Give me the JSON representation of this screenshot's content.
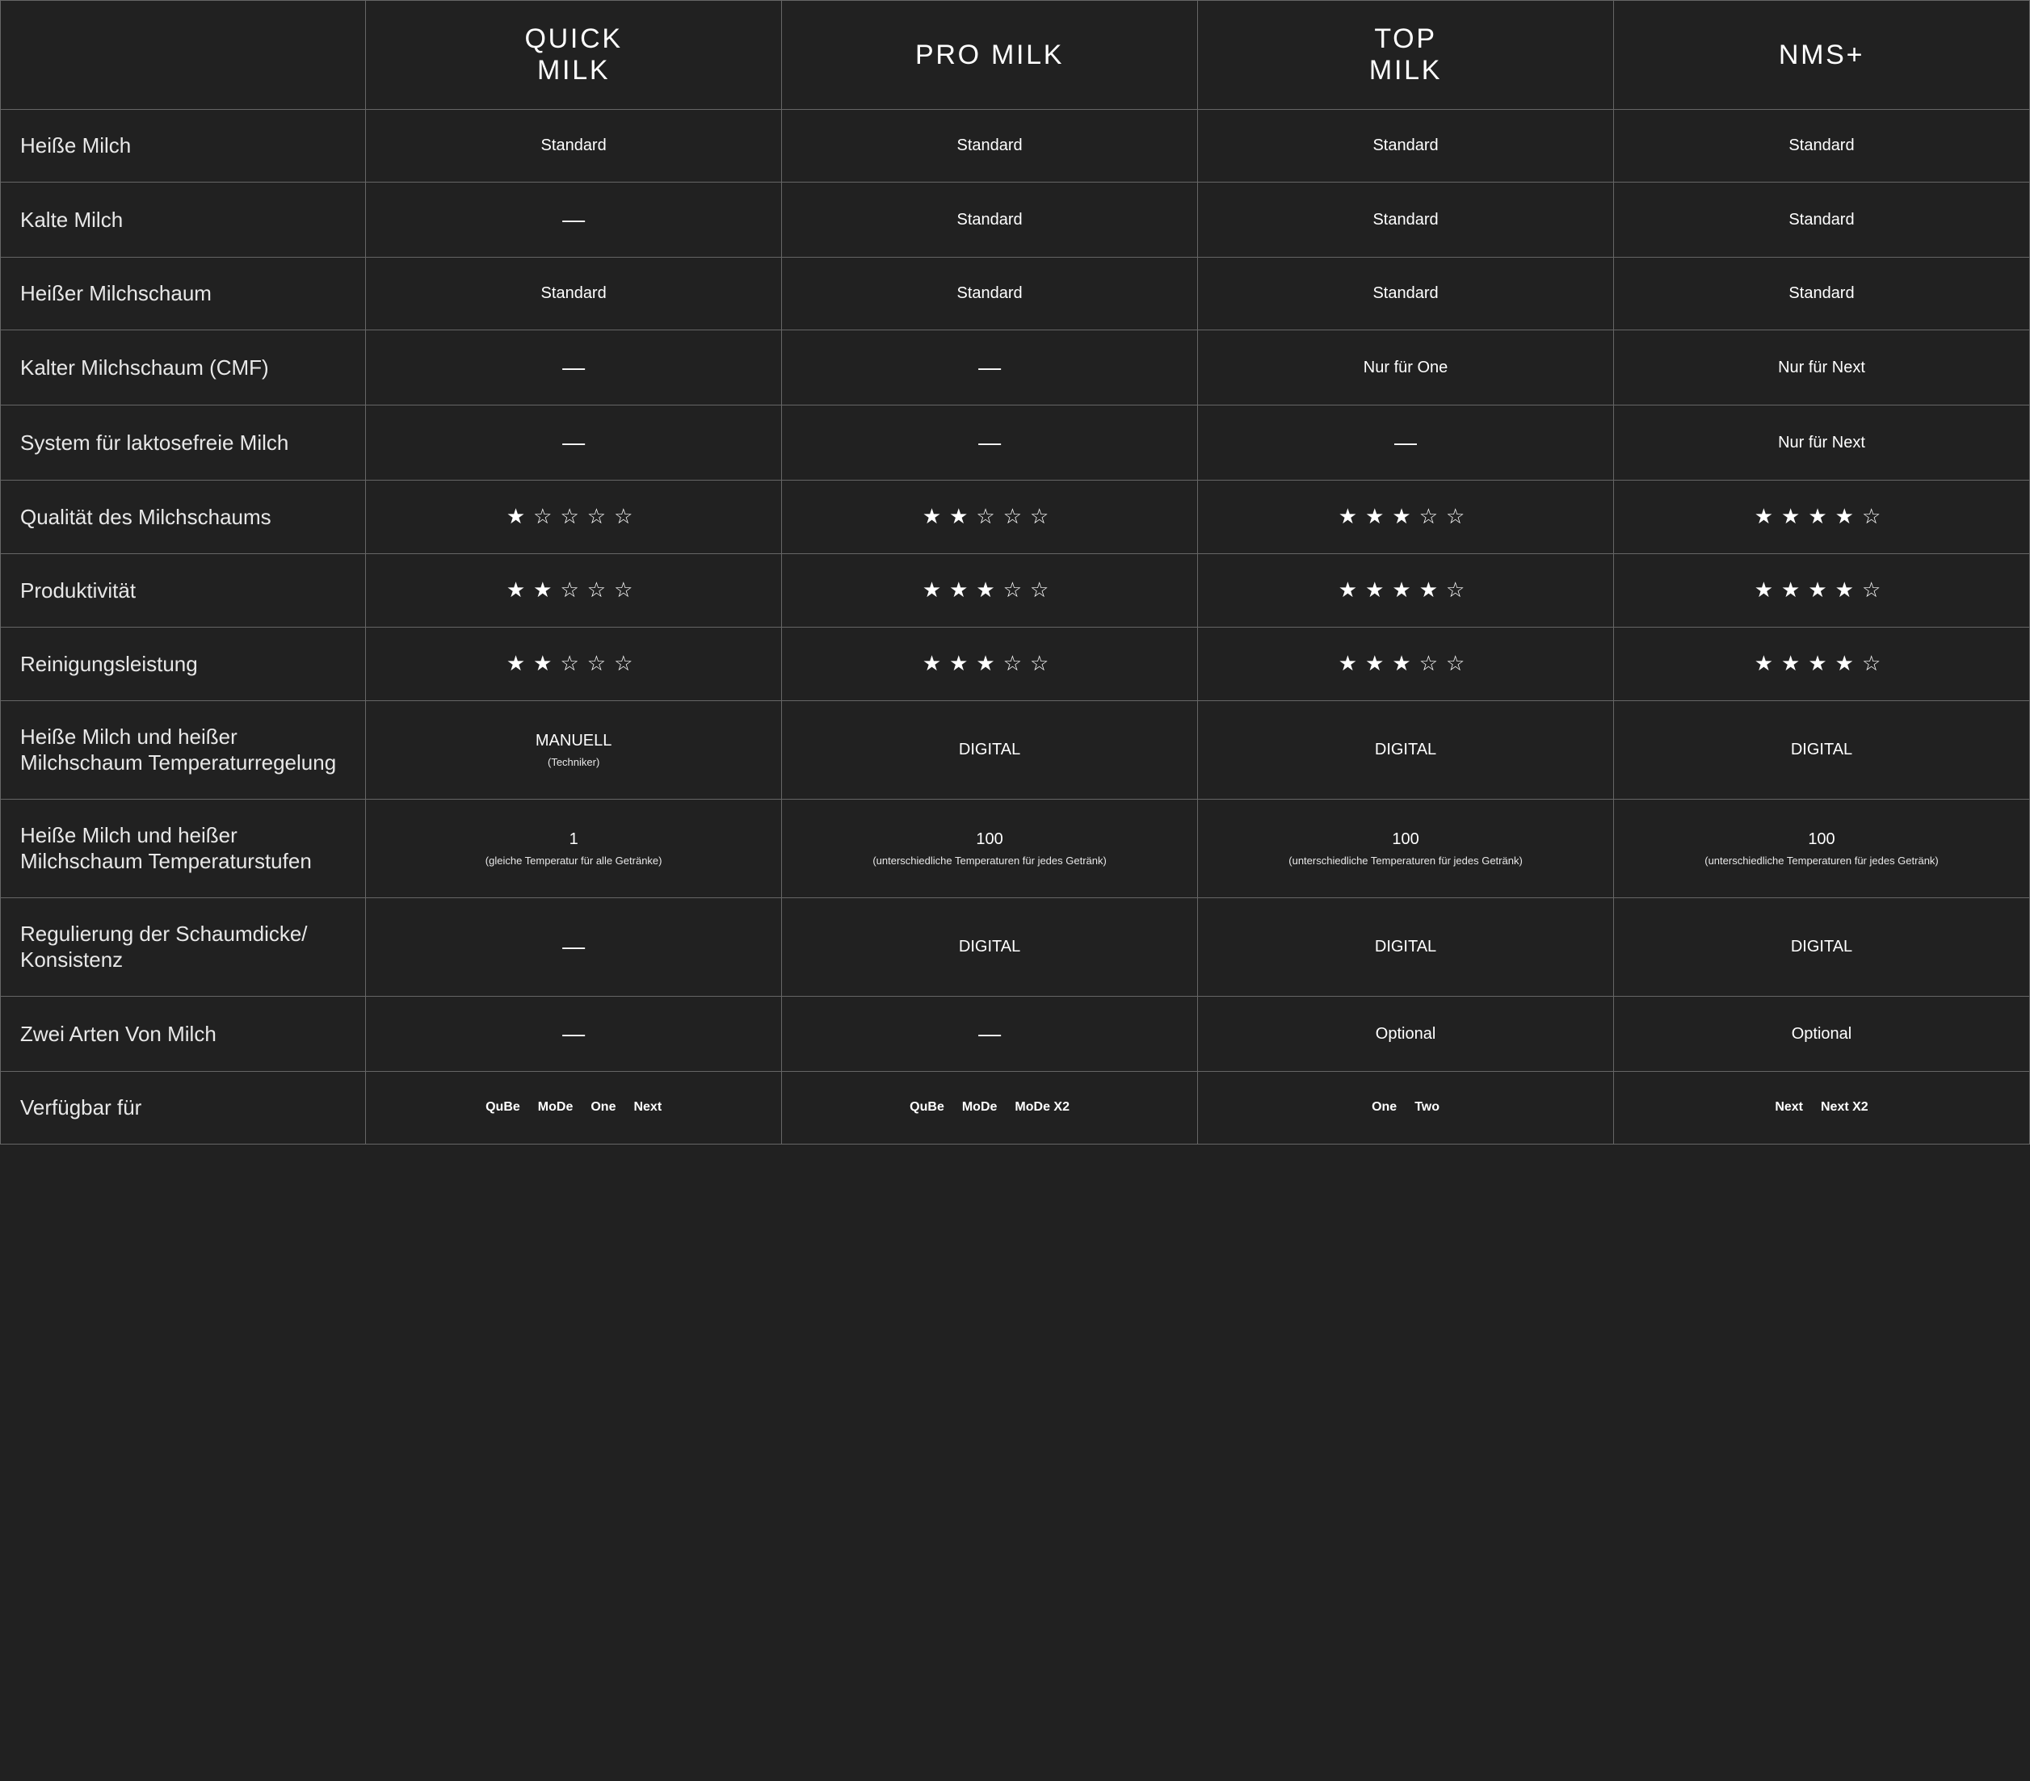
{
  "colors": {
    "background": "#212121",
    "border": "#666666",
    "text": "#ffffff"
  },
  "columns": [
    {
      "id": "quick",
      "label_line1": "QUICK",
      "label_line2": "MILK"
    },
    {
      "id": "pro",
      "label_line1": "PRO MILK",
      "label_line2": ""
    },
    {
      "id": "top",
      "label_line1": "TOP",
      "label_line2": "MILK"
    },
    {
      "id": "nms",
      "label_line1": "NMS+",
      "label_line2": ""
    }
  ],
  "rows": [
    {
      "label": "Heiße Milch",
      "cells": [
        {
          "type": "text",
          "value": "Standard"
        },
        {
          "type": "text",
          "value": "Standard"
        },
        {
          "type": "text",
          "value": "Standard"
        },
        {
          "type": "text",
          "value": "Standard"
        }
      ]
    },
    {
      "label": "Kalte Milch",
      "cells": [
        {
          "type": "dash"
        },
        {
          "type": "text",
          "value": "Standard"
        },
        {
          "type": "text",
          "value": "Standard"
        },
        {
          "type": "text",
          "value": "Standard"
        }
      ]
    },
    {
      "label": "Heißer Milchschaum",
      "cells": [
        {
          "type": "text",
          "value": "Standard"
        },
        {
          "type": "text",
          "value": "Standard"
        },
        {
          "type": "text",
          "value": "Standard"
        },
        {
          "type": "text",
          "value": "Standard"
        }
      ]
    },
    {
      "label": "Kalter Milchschaum (CMF)",
      "cells": [
        {
          "type": "dash"
        },
        {
          "type": "dash"
        },
        {
          "type": "text",
          "value": "Nur für One"
        },
        {
          "type": "text",
          "value": "Nur für Next"
        }
      ]
    },
    {
      "label": "System für laktosefreie Milch",
      "cells": [
        {
          "type": "dash"
        },
        {
          "type": "dash"
        },
        {
          "type": "dash"
        },
        {
          "type": "text",
          "value": "Nur für Next"
        }
      ]
    },
    {
      "label": "Qualität des Milchschaums",
      "cells": [
        {
          "type": "stars",
          "value": 1,
          "max": 5
        },
        {
          "type": "stars",
          "value": 2,
          "max": 5
        },
        {
          "type": "stars",
          "value": 3,
          "max": 5
        },
        {
          "type": "stars",
          "value": 4,
          "max": 5
        }
      ]
    },
    {
      "label": "Produktivität",
      "cells": [
        {
          "type": "stars",
          "value": 2,
          "max": 5
        },
        {
          "type": "stars",
          "value": 3,
          "max": 5
        },
        {
          "type": "stars",
          "value": 4,
          "max": 5
        },
        {
          "type": "stars",
          "value": 4,
          "max": 5
        }
      ]
    },
    {
      "label": "Reinigungsleistung",
      "cells": [
        {
          "type": "stars",
          "value": 2,
          "max": 5
        },
        {
          "type": "stars",
          "value": 3,
          "max": 5
        },
        {
          "type": "stars",
          "value": 3,
          "max": 5
        },
        {
          "type": "stars",
          "value": 4,
          "max": 5
        }
      ]
    },
    {
      "label": "Heiße Milch und heißer Milchschaum Temperaturregelung",
      "cells": [
        {
          "type": "text_sub",
          "value": "MANUELL",
          "sub": "(Techniker)"
        },
        {
          "type": "text",
          "value": "DIGITAL"
        },
        {
          "type": "text",
          "value": "DIGITAL"
        },
        {
          "type": "text",
          "value": "DIGITAL"
        }
      ]
    },
    {
      "label": "Heiße Milch und heißer Milchschaum Temperaturstufen",
      "cells": [
        {
          "type": "text_sub",
          "value": "1",
          "sub": "(gleiche Temperatur für alle Getränke)"
        },
        {
          "type": "text_sub",
          "value": "100",
          "sub": "(unterschiedliche Temperaturen für jedes Getränk)"
        },
        {
          "type": "text_sub",
          "value": "100",
          "sub": "(unterschiedliche Temperaturen für jedes Getränk)"
        },
        {
          "type": "text_sub",
          "value": "100",
          "sub": "(unterschiedliche Temperaturen für jedes Getränk)"
        }
      ]
    },
    {
      "label": "Regulierung der Schaumdicke/ Konsistenz",
      "cells": [
        {
          "type": "dash"
        },
        {
          "type": "text",
          "value": "DIGITAL"
        },
        {
          "type": "text",
          "value": "DIGITAL"
        },
        {
          "type": "text",
          "value": "DIGITAL"
        }
      ]
    },
    {
      "label": "Zwei Arten Von Milch",
      "cells": [
        {
          "type": "dash"
        },
        {
          "type": "dash"
        },
        {
          "type": "text",
          "value": "Optional"
        },
        {
          "type": "text",
          "value": "Optional"
        }
      ]
    },
    {
      "label": "Verfügbar für",
      "cells": [
        {
          "type": "list",
          "items": [
            "QuBe",
            "MoDe",
            "One",
            "Next"
          ]
        },
        {
          "type": "list",
          "items": [
            "QuBe",
            "MoDe",
            "MoDe X2"
          ]
        },
        {
          "type": "list",
          "items": [
            "One",
            "Two"
          ]
        },
        {
          "type": "list",
          "items": [
            "Next",
            "Next X2"
          ]
        }
      ]
    }
  ]
}
